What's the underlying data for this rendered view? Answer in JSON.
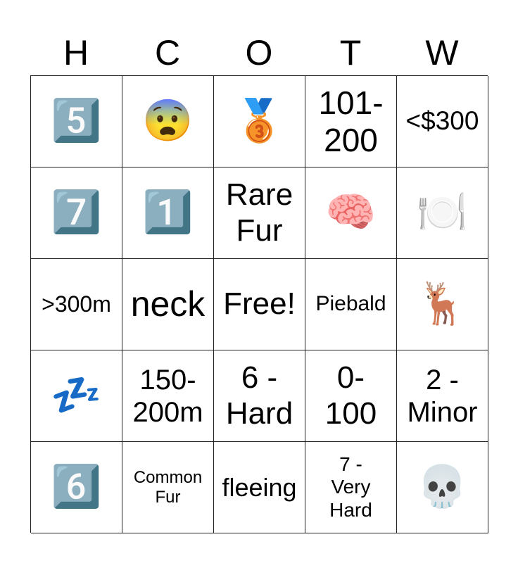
{
  "header": [
    "H",
    "C",
    "O",
    "T",
    "W"
  ],
  "cells": [
    {
      "text": "5️⃣",
      "kind": "emoji",
      "icon": "keycap-5"
    },
    {
      "text": "😨",
      "kind": "emoji",
      "icon": "anxious-face"
    },
    {
      "text": "🥉",
      "kind": "emoji",
      "icon": "third-place-medal"
    },
    {
      "text": "101-\n200",
      "size": 46
    },
    {
      "text": "<$300",
      "size": 37
    },
    {
      "text": "7️⃣",
      "kind": "emoji",
      "icon": "keycap-7"
    },
    {
      "text": "1️⃣",
      "kind": "emoji",
      "icon": "keycap-1"
    },
    {
      "text": "Rare\nFur",
      "size": 44
    },
    {
      "text": "🧠",
      "kind": "emoji",
      "icon": "brain"
    },
    {
      "text": "🍽️",
      "kind": "emoji",
      "icon": "plate-fork-knife"
    },
    {
      "text": ">300m",
      "size": 32
    },
    {
      "text": "neck",
      "size": 50
    },
    {
      "text": "Free!",
      "size": 44
    },
    {
      "text": "Piebald",
      "size": 30
    },
    {
      "text": "🦌",
      "kind": "emoji",
      "icon": "deer"
    },
    {
      "text": "💤",
      "kind": "emoji",
      "icon": "zzz"
    },
    {
      "text": "150-\n200m",
      "size": 40
    },
    {
      "text": "6 -\nHard",
      "size": 44
    },
    {
      "text": "0-\n100",
      "size": 44
    },
    {
      "text": "2 -\nMinor",
      "size": 40
    },
    {
      "text": "6️⃣",
      "kind": "emoji",
      "icon": "keycap-6"
    },
    {
      "text": "Common\nFur",
      "size": 24
    },
    {
      "text": "fleeing",
      "size": 36
    },
    {
      "text": "7 -\nVery\nHard",
      "size": 28
    },
    {
      "text": "💀",
      "kind": "emoji",
      "icon": "skull"
    }
  ]
}
